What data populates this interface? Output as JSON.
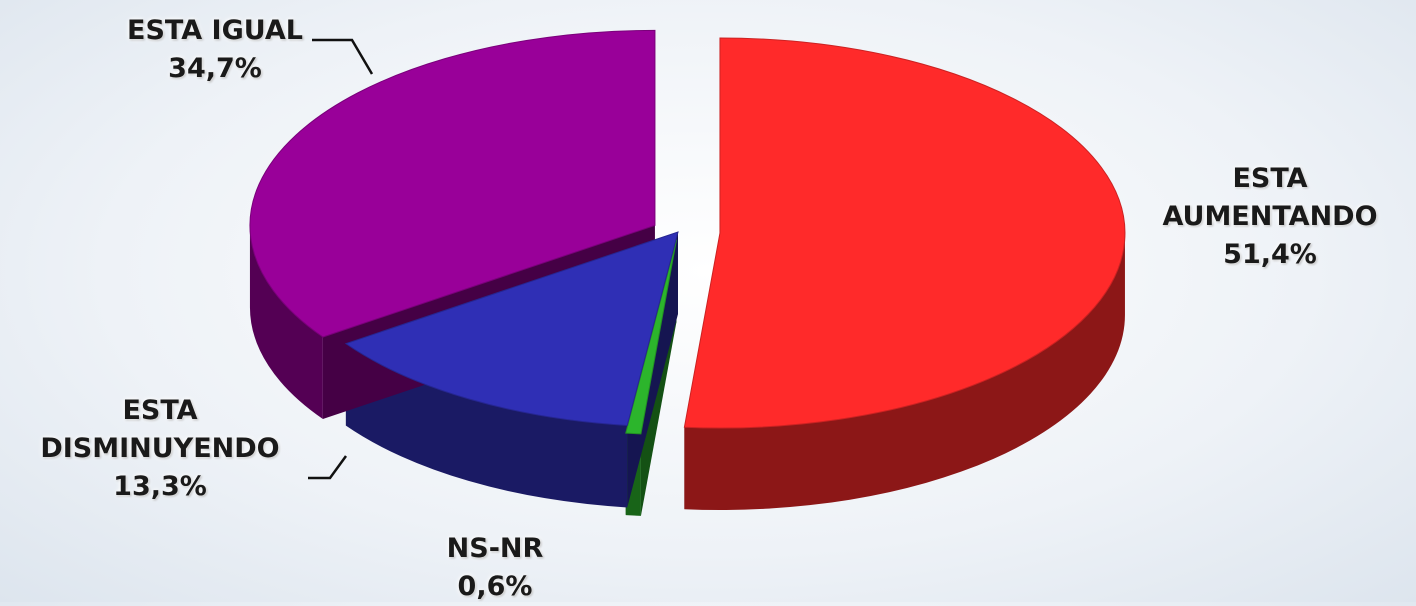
{
  "chart_data": {
    "type": "pie",
    "categories": [
      "ESTA AUMENTANDO",
      "NS-NR",
      "ESTA DISMINUYENDO",
      "ESTA IGUAL"
    ],
    "values": [
      51.4,
      0.6,
      13.3,
      34.7
    ],
    "value_labels": [
      "51,4%",
      "0,6%",
      "13,3%",
      "34,7%"
    ],
    "colors": [
      "#ff2a2a",
      "#2cb52c",
      "#2f2fb5",
      "#990099"
    ]
  }
}
